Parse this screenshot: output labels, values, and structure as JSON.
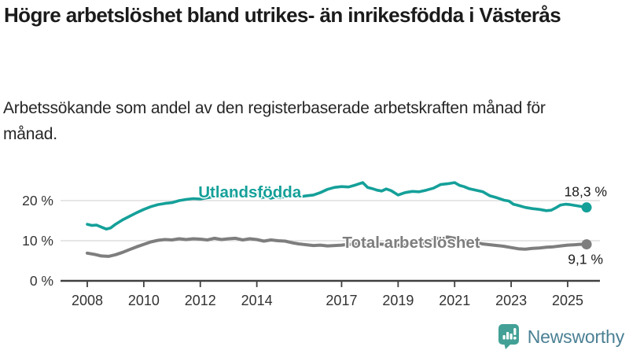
{
  "title": "Högre arbetslöshet bland utrikes- än inrikesfödda i Västerås",
  "subtitle": "Arbetssökande som andel av den registerbaserade arbetskraften månad för månad.",
  "branding": {
    "logo_text": "Newsworthy",
    "logo_icon": "bar-chart-speech-bubble-icon",
    "logo_icon_color": "#42a096",
    "logo_text_color": "#4b8094"
  },
  "colors": {
    "title": "#1b1b1b",
    "subtitle": "#262626",
    "axis_line": "#404040",
    "axis_text": "#333333",
    "grid_line": "#d8d8d8",
    "value_label": "#1b1b1b",
    "series_foreign": "#14a099",
    "series_total": "#7e7e7e"
  },
  "chart_data": {
    "type": "line",
    "title": "",
    "xlabel": "",
    "ylabel": "",
    "grid": "horizontal",
    "legend_position": "inline-labels",
    "xlim": [
      2007.05,
      2026.16
    ],
    "ylim": [
      0,
      28.4
    ],
    "x_axis": {
      "ticks": [
        {
          "label": "2008",
          "year": 2008
        },
        {
          "label": "2010",
          "year": 2010
        },
        {
          "label": "2012",
          "year": 2012
        },
        {
          "label": "2014",
          "year": 2014
        },
        {
          "label": "2017",
          "year": 2017
        },
        {
          "label": "2019",
          "year": 2019
        },
        {
          "label": "2021",
          "year": 2021
        },
        {
          "label": "2023",
          "year": 2023
        },
        {
          "label": "2025",
          "year": 2025
        }
      ]
    },
    "y_axis": {
      "ticks": [
        {
          "label": "20 %",
          "value": 20
        },
        {
          "label": "10 %",
          "value": 10
        },
        {
          "label": "0 %",
          "value": 0
        }
      ]
    },
    "series": [
      {
        "name": "Utlandsfödda",
        "color": "#14a099",
        "line_width": 3.6,
        "end_label": "18,3 %",
        "end_value": 18.3,
        "label_anchor": {
          "x": 2011.93,
          "value": 20.8
        },
        "points": [
          [
            2008.0,
            14.1
          ],
          [
            2008.17,
            13.8
          ],
          [
            2008.33,
            13.9
          ],
          [
            2008.5,
            13.4
          ],
          [
            2008.67,
            12.9
          ],
          [
            2008.83,
            13.2
          ],
          [
            2009.0,
            14.1
          ],
          [
            2009.25,
            15.2
          ],
          [
            2009.5,
            16.1
          ],
          [
            2009.75,
            17.0
          ],
          [
            2010.0,
            17.8
          ],
          [
            2010.25,
            18.5
          ],
          [
            2010.5,
            19.0
          ],
          [
            2010.75,
            19.3
          ],
          [
            2011.0,
            19.5
          ],
          [
            2011.25,
            20.0
          ],
          [
            2011.5,
            20.3
          ],
          [
            2011.75,
            20.5
          ],
          [
            2012.0,
            20.4
          ],
          [
            2012.25,
            20.7
          ],
          [
            2012.5,
            21.0
          ],
          [
            2012.75,
            20.9
          ],
          [
            2013.0,
            21.1
          ],
          [
            2013.25,
            21.3
          ],
          [
            2013.5,
            21.2
          ],
          [
            2013.75,
            21.5
          ],
          [
            2014.0,
            21.7
          ],
          [
            2014.17,
            20.7
          ],
          [
            2014.33,
            21.0
          ],
          [
            2014.5,
            20.6
          ],
          [
            2014.67,
            20.9
          ],
          [
            2014.83,
            20.7
          ],
          [
            2015.0,
            21.0
          ],
          [
            2015.25,
            21.2
          ],
          [
            2015.5,
            20.9
          ],
          [
            2015.75,
            21.2
          ],
          [
            2016.0,
            21.4
          ],
          [
            2016.25,
            22.0
          ],
          [
            2016.5,
            22.8
          ],
          [
            2016.75,
            23.3
          ],
          [
            2017.0,
            23.5
          ],
          [
            2017.25,
            23.4
          ],
          [
            2017.5,
            23.9
          ],
          [
            2017.75,
            24.5
          ],
          [
            2017.92,
            23.3
          ],
          [
            2018.08,
            23.0
          ],
          [
            2018.25,
            22.6
          ],
          [
            2018.42,
            22.4
          ],
          [
            2018.58,
            22.9
          ],
          [
            2018.75,
            22.5
          ],
          [
            2019.0,
            21.4
          ],
          [
            2019.25,
            22.0
          ],
          [
            2019.5,
            22.3
          ],
          [
            2019.75,
            22.2
          ],
          [
            2020.0,
            22.6
          ],
          [
            2020.25,
            23.1
          ],
          [
            2020.5,
            24.0
          ],
          [
            2020.75,
            24.2
          ],
          [
            2021.0,
            24.5
          ],
          [
            2021.17,
            23.8
          ],
          [
            2021.33,
            23.5
          ],
          [
            2021.5,
            23.0
          ],
          [
            2021.75,
            22.6
          ],
          [
            2022.0,
            22.2
          ],
          [
            2022.25,
            21.2
          ],
          [
            2022.5,
            20.7
          ],
          [
            2022.75,
            20.1
          ],
          [
            2022.92,
            19.9
          ],
          [
            2023.08,
            19.1
          ],
          [
            2023.25,
            18.8
          ],
          [
            2023.5,
            18.3
          ],
          [
            2023.75,
            18.0
          ],
          [
            2024.0,
            17.8
          ],
          [
            2024.25,
            17.5
          ],
          [
            2024.42,
            17.6
          ],
          [
            2024.58,
            18.2
          ],
          [
            2024.75,
            18.9
          ],
          [
            2024.92,
            19.1
          ],
          [
            2025.08,
            19.0
          ],
          [
            2025.25,
            18.8
          ],
          [
            2025.42,
            18.6
          ],
          [
            2025.67,
            18.3
          ]
        ]
      },
      {
        "name": "Total arbetslöshet",
        "color": "#7e7e7e",
        "line_width": 4,
        "end_label": "9,1 %",
        "end_value": 9.1,
        "label_anchor": {
          "x": 2017.03,
          "value": 8.2
        },
        "points": [
          [
            2008.0,
            6.9
          ],
          [
            2008.25,
            6.6
          ],
          [
            2008.5,
            6.2
          ],
          [
            2008.75,
            6.1
          ],
          [
            2009.0,
            6.5
          ],
          [
            2009.25,
            7.1
          ],
          [
            2009.5,
            7.8
          ],
          [
            2009.75,
            8.5
          ],
          [
            2010.0,
            9.1
          ],
          [
            2010.25,
            9.7
          ],
          [
            2010.5,
            10.1
          ],
          [
            2010.75,
            10.3
          ],
          [
            2011.0,
            10.2
          ],
          [
            2011.25,
            10.5
          ],
          [
            2011.5,
            10.3
          ],
          [
            2011.75,
            10.5
          ],
          [
            2012.0,
            10.4
          ],
          [
            2012.25,
            10.2
          ],
          [
            2012.5,
            10.6
          ],
          [
            2012.75,
            10.3
          ],
          [
            2013.0,
            10.5
          ],
          [
            2013.25,
            10.6
          ],
          [
            2013.5,
            10.2
          ],
          [
            2013.75,
            10.5
          ],
          [
            2014.0,
            10.3
          ],
          [
            2014.25,
            9.9
          ],
          [
            2014.5,
            10.2
          ],
          [
            2014.75,
            10.0
          ],
          [
            2015.0,
            9.9
          ],
          [
            2015.25,
            9.5
          ],
          [
            2015.5,
            9.2
          ],
          [
            2015.75,
            9.0
          ],
          [
            2016.0,
            8.8
          ],
          [
            2016.25,
            8.9
          ],
          [
            2016.5,
            8.7
          ],
          [
            2016.75,
            8.8
          ],
          [
            2017.0,
            8.9
          ],
          [
            2017.25,
            9.1
          ],
          [
            2017.5,
            9.2
          ],
          [
            2017.75,
            9.1
          ],
          [
            2018.0,
            9.3
          ],
          [
            2018.25,
            9.2
          ],
          [
            2018.5,
            9.1
          ],
          [
            2018.75,
            9.0
          ],
          [
            2019.0,
            8.9
          ],
          [
            2019.25,
            8.9
          ],
          [
            2019.5,
            9.0
          ],
          [
            2019.75,
            9.2
          ],
          [
            2020.0,
            9.5
          ],
          [
            2020.25,
            10.3
          ],
          [
            2020.5,
            10.8
          ],
          [
            2020.75,
            10.9
          ],
          [
            2021.0,
            10.6
          ],
          [
            2021.25,
            10.2
          ],
          [
            2021.5,
            9.8
          ],
          [
            2021.75,
            9.5
          ],
          [
            2022.0,
            9.2
          ],
          [
            2022.25,
            9.0
          ],
          [
            2022.5,
            8.8
          ],
          [
            2022.75,
            8.6
          ],
          [
            2023.0,
            8.3
          ],
          [
            2023.25,
            8.0
          ],
          [
            2023.5,
            7.9
          ],
          [
            2023.75,
            8.1
          ],
          [
            2024.0,
            8.2
          ],
          [
            2024.25,
            8.4
          ],
          [
            2024.5,
            8.5
          ],
          [
            2024.75,
            8.7
          ],
          [
            2025.0,
            8.9
          ],
          [
            2025.25,
            9.0
          ],
          [
            2025.42,
            9.1
          ],
          [
            2025.67,
            9.1
          ]
        ]
      }
    ]
  }
}
